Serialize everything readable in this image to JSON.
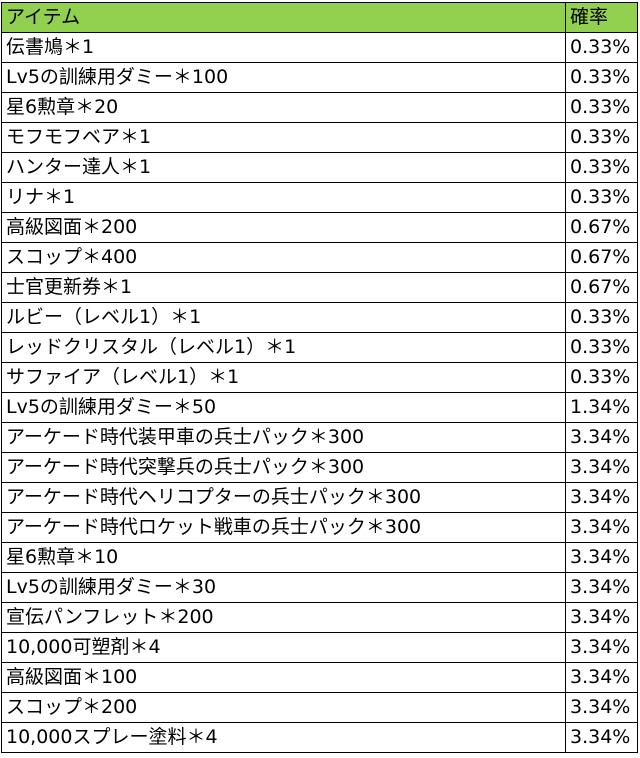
{
  "table": {
    "headers": {
      "item": "アイテム",
      "rate": "確率"
    },
    "rows": [
      {
        "item": "伝書鳩＊1",
        "rate": "0.33%"
      },
      {
        "item": "Lv5の訓練用ダミー＊100",
        "rate": "0.33%"
      },
      {
        "item": "星6勲章＊20",
        "rate": "0.33%"
      },
      {
        "item": "モフモフベア＊1",
        "rate": "0.33%"
      },
      {
        "item": "ハンター達人＊1",
        "rate": "0.33%"
      },
      {
        "item": "リナ＊1",
        "rate": "0.33%"
      },
      {
        "item": "高級図面＊200",
        "rate": "0.67%"
      },
      {
        "item": "スコップ＊400",
        "rate": "0.67%"
      },
      {
        "item": "士官更新券＊1",
        "rate": "0.67%"
      },
      {
        "item": "ルビー（レベル1）＊1",
        "rate": "0.33%"
      },
      {
        "item": "レッドクリスタル（レベル1）＊1",
        "rate": "0.33%"
      },
      {
        "item": "サファイア（レベル1）＊1",
        "rate": "0.33%"
      },
      {
        "item": "Lv5の訓練用ダミー＊50",
        "rate": "1.34%"
      },
      {
        "item": "アーケード時代装甲車の兵士パック＊300",
        "rate": "3.34%"
      },
      {
        "item": "アーケード時代突撃兵の兵士パック＊300",
        "rate": "3.34%"
      },
      {
        "item": "アーケード時代ヘリコプターの兵士パック＊300",
        "rate": "3.34%"
      },
      {
        "item": "アーケード時代ロケット戦車の兵士パック＊300",
        "rate": "3.34%"
      },
      {
        "item": "星6勲章＊10",
        "rate": "3.34%"
      },
      {
        "item": "Lv5の訓練用ダミー＊30",
        "rate": "3.34%"
      },
      {
        "item": "宣伝パンフレット＊200",
        "rate": "3.34%"
      },
      {
        "item": "10,000可塑剤＊4",
        "rate": "3.34%"
      },
      {
        "item": "高級図面＊100",
        "rate": "3.34%"
      },
      {
        "item": "スコップ＊200",
        "rate": "3.34%"
      },
      {
        "item": "10,000スプレー塗料＊4",
        "rate": "3.34%"
      }
    ]
  },
  "colors": {
    "header_background": "#92d050",
    "grid_line": "#000000"
  }
}
